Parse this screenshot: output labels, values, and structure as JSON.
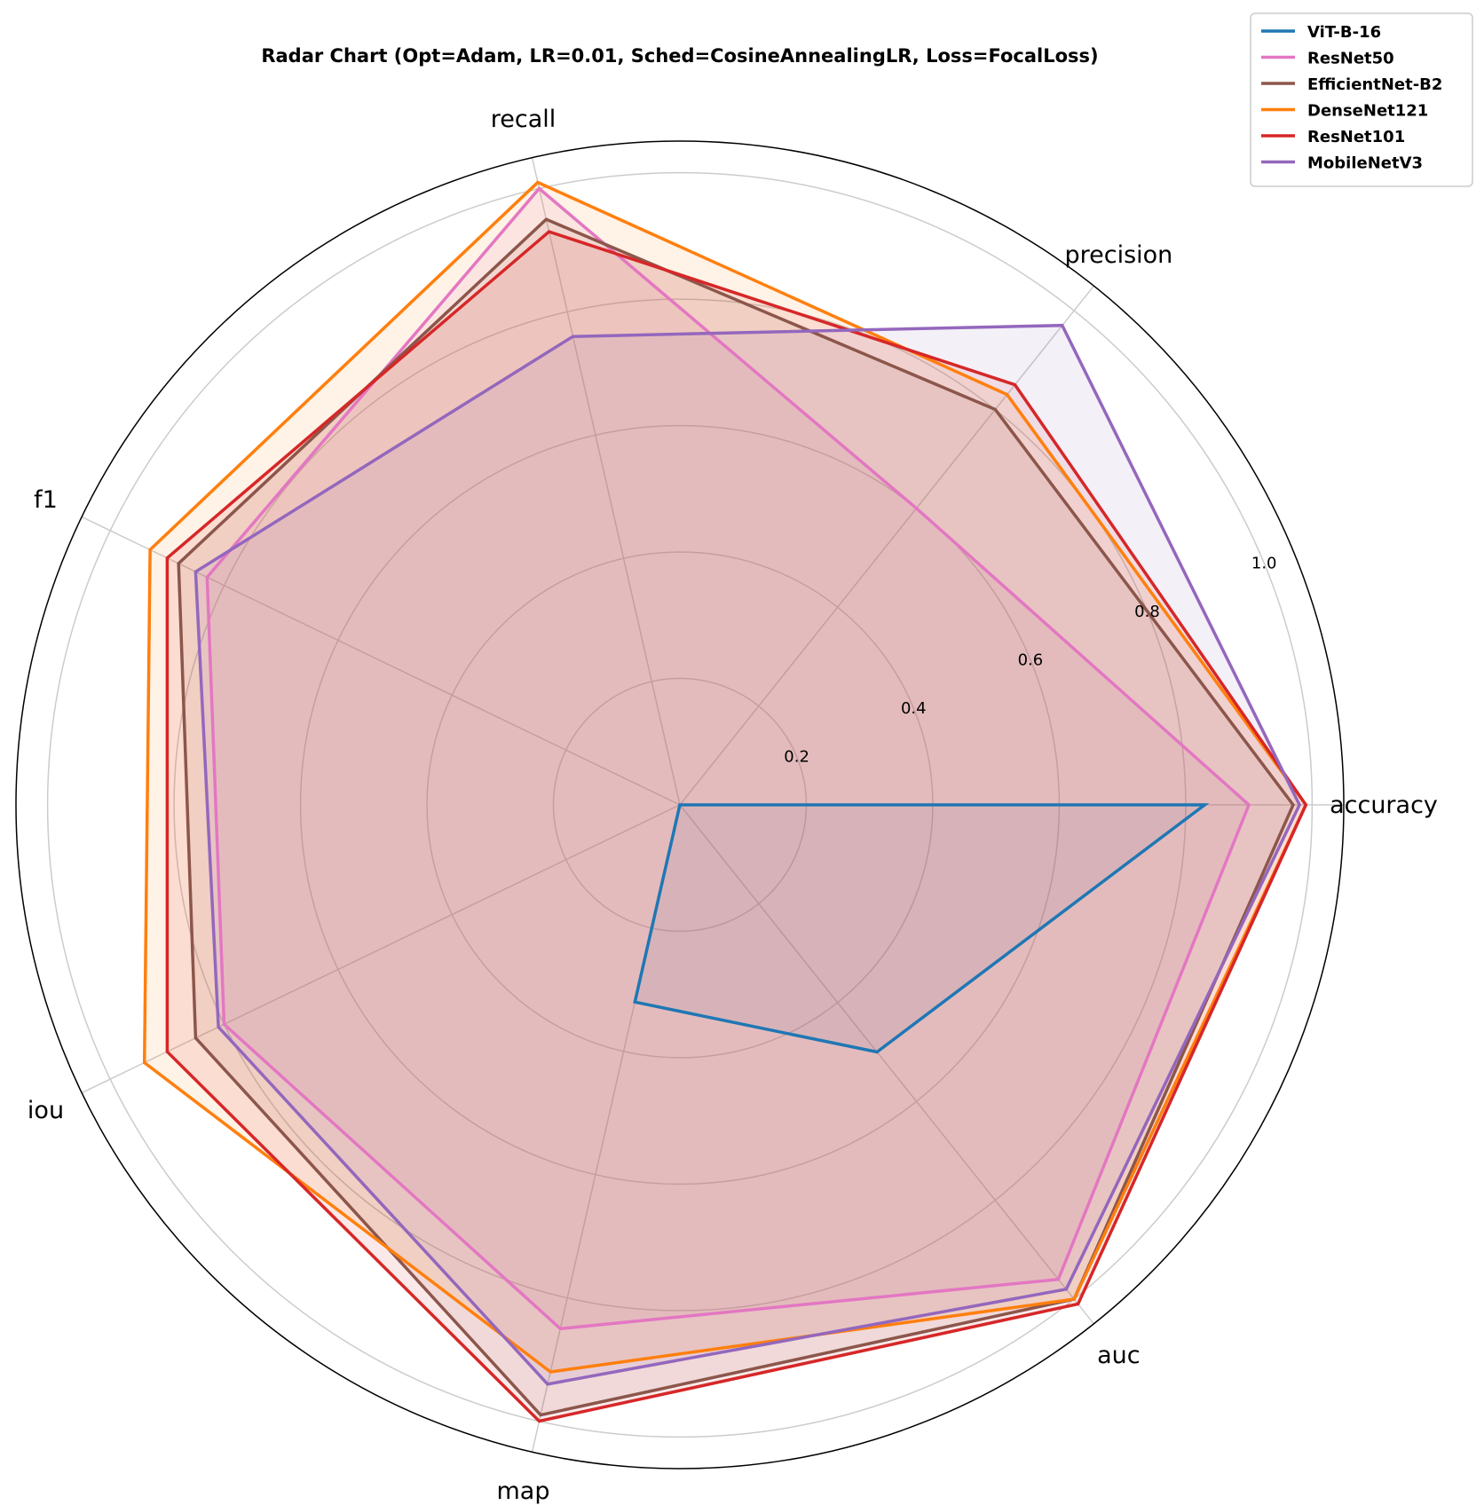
{
  "chart_data": {
    "type": "radar",
    "title": "Radar Chart (Opt=Adam, LR=0.01, Sched=CosineAnnealingLR, Loss=FocalLoss)",
    "axes": [
      "accuracy",
      "precision",
      "recall",
      "f1",
      "iou",
      "map",
      "auc"
    ],
    "rlim": [
      0,
      1.05
    ],
    "rticks": [
      0.2,
      0.4,
      0.6,
      0.8,
      1.0
    ],
    "rtick_labels": [
      "0.2",
      "0.4",
      "0.6",
      "0.8",
      "1.0"
    ],
    "grid": true,
    "legend_position": "top-right",
    "series": [
      {
        "name": "ViT-B-16",
        "color": "#1f77b4",
        "values": [
          0.83,
          0.0,
          0.0,
          0.0,
          0.0,
          0.32,
          0.5
        ]
      },
      {
        "name": "ResNet50",
        "color": "#e377c2",
        "values": [
          0.9,
          0.6,
          1.0,
          0.83,
          0.8,
          0.85,
          0.96
        ]
      },
      {
        "name": "EfficientNet-B2",
        "color": "#8c564b",
        "values": [
          0.97,
          0.8,
          0.95,
          0.88,
          0.85,
          0.99,
          1.0
        ]
      },
      {
        "name": "DenseNet121",
        "color": "#ff7f0e",
        "values": [
          0.99,
          0.83,
          1.01,
          0.93,
          0.94,
          0.92,
          1.0
        ]
      },
      {
        "name": "ResNet101",
        "color": "#d62728",
        "values": [
          0.99,
          0.85,
          0.93,
          0.9,
          0.9,
          1.0,
          1.01
        ]
      },
      {
        "name": "MobileNetV3",
        "color": "#9467bd",
        "values": [
          0.98,
          0.97,
          0.76,
          0.85,
          0.81,
          0.94,
          0.98
        ]
      }
    ]
  }
}
